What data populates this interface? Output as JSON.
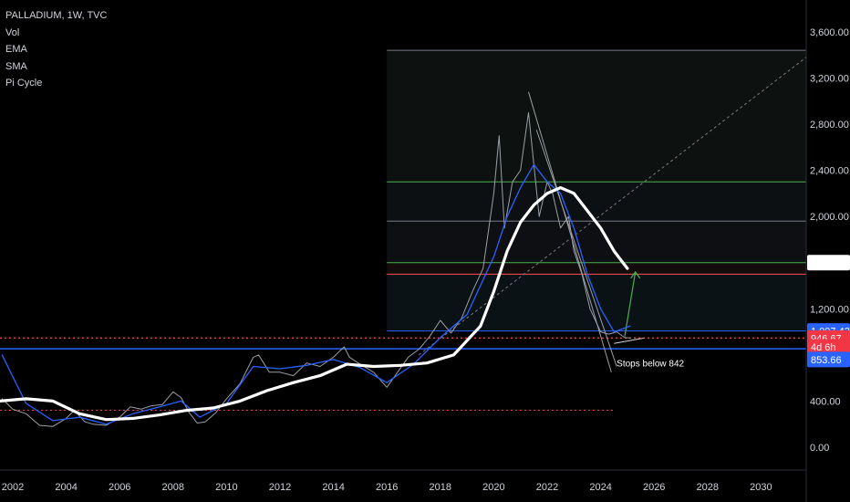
{
  "legend": {
    "symbol": "PALLADIUM, 1W, TVC",
    "indicators": [
      "Vol",
      "EMA",
      "SMA",
      "Pi Cycle"
    ]
  },
  "colors": {
    "background": "#000000",
    "candles": "#9aa0a6",
    "ema": "#2962ff",
    "pi_cycle": "#ffffff",
    "support_line": "#2962ff",
    "current_price_line": "#f23645",
    "fib_upper_line": "#4caf50",
    "fib_red_line": "#ff5252",
    "projection_arrow": "#4caf50",
    "badge_blue": "#2962ff",
    "badge_red": "#f23645",
    "badge_white": "#ffffff"
  },
  "chart_data": {
    "type": "line",
    "title": "PALLADIUM, 1W, TVC",
    "xlabel": "",
    "ylabel": "",
    "xlim": [
      2001.5,
      2031.5
    ],
    "ylim": [
      -150,
      3750
    ],
    "x_ticks": [
      "2002",
      "2004",
      "2006",
      "2008",
      "2010",
      "2012",
      "2014",
      "2016",
      "2018",
      "2020",
      "2022",
      "2024",
      "2026",
      "2028",
      "2030"
    ],
    "y_ticks": [
      "3,600.00",
      "3,200.00",
      "2,800.00",
      "2,400.00",
      "2,000.00",
      "1,600.00",
      "1,200.00",
      "800.00",
      "400.00",
      "0.00"
    ],
    "grid": false,
    "series": [
      {
        "name": "",
        "color": "#9aa0a6",
        "x": [
          2001.6,
          2002.0,
          2002.5,
          2003.0,
          2003.5,
          2004.0,
          2004.3,
          2004.7,
          2005.0,
          2005.5,
          2006.0,
          2006.4,
          2006.8,
          2007.2,
          2007.6,
          2008.0,
          2008.3,
          2008.6,
          2008.9,
          2009.2,
          2009.6,
          2010.0,
          2010.5,
          2011.0,
          2011.2,
          2011.6,
          2012.0,
          2012.5,
          2013.0,
          2013.5,
          2014.0,
          2014.4,
          2014.6,
          2015.0,
          2015.5,
          2016.0,
          2016.4,
          2016.8,
          2017.2,
          2017.6,
          2018.0,
          2018.4,
          2018.8,
          2019.2,
          2019.6,
          2020.0,
          2020.2,
          2020.4,
          2020.7,
          2021.0,
          2021.3,
          2021.7,
          2022.0,
          2022.2,
          2022.5,
          2022.8,
          2023.0,
          2023.3,
          2023.6,
          2024.0,
          2024.3,
          2024.6,
          2024.9,
          2025.1
        ],
        "values": [
          420,
          330,
          290,
          190,
          180,
          250,
          320,
          220,
          200,
          190,
          260,
          350,
          330,
          360,
          370,
          480,
          430,
          300,
          210,
          220,
          300,
          420,
          550,
          780,
          800,
          650,
          650,
          620,
          730,
          700,
          780,
          870,
          780,
          720,
          650,
          520,
          650,
          780,
          850,
          960,
          1100,
          990,
          1120,
          1350,
          1550,
          2200,
          2700,
          1900,
          2300,
          2400,
          2900,
          2000,
          2300,
          2200,
          1900,
          2000,
          1700,
          1500,
          1200,
          1000,
          980,
          1000,
          950,
          947
        ]
      },
      {
        "name": "EMA",
        "color": "#2962ff",
        "x": [
          2001.6,
          2002.5,
          2003.5,
          2004.5,
          2005.5,
          2006.5,
          2007.5,
          2008.3,
          2009.0,
          2010.0,
          2011.0,
          2012.0,
          2013.0,
          2014.0,
          2015.0,
          2016.0,
          2017.0,
          2018.0,
          2019.0,
          2020.0,
          2020.5,
          2021.0,
          2021.5,
          2022.0,
          2022.5,
          2023.0,
          2023.5,
          2024.0,
          2024.5,
          2025.1
        ],
        "values": [
          800,
          380,
          230,
          260,
          200,
          290,
          350,
          400,
          260,
          380,
          700,
          680,
          710,
          760,
          690,
          560,
          720,
          950,
          1150,
          1650,
          2000,
          2250,
          2450,
          2300,
          2200,
          1900,
          1500,
          1200,
          1000,
          1050
        ]
      },
      {
        "name": "Pi Cycle",
        "color": "#ffffff",
        "x": [
          2001.5,
          2002.5,
          2003.5,
          2004.5,
          2005.5,
          2006.5,
          2007.5,
          2008.5,
          2009.5,
          2010.5,
          2011.5,
          2012.5,
          2013.5,
          2014.5,
          2015.5,
          2016.5,
          2017.5,
          2018.5,
          2019.5,
          2020.0,
          2020.5,
          2021.0,
          2021.5,
          2022.0,
          2022.5,
          2023.0,
          2023.5,
          2024.0,
          2024.5,
          2025.0
        ],
        "values": [
          400,
          420,
          400,
          290,
          240,
          250,
          280,
          320,
          340,
          400,
          490,
          560,
          620,
          720,
          700,
          710,
          730,
          800,
          1050,
          1350,
          1700,
          1950,
          2100,
          2200,
          2250,
          2200,
          2050,
          1900,
          1700,
          1550
        ]
      }
    ],
    "horizontal_levels": [
      {
        "value": 3440,
        "color": "#787b86"
      },
      {
        "value": 2300,
        "color": "#4caf50"
      },
      {
        "value": 1960,
        "color": "#787b86"
      },
      {
        "value": 1600.47,
        "color": "#4caf50"
      },
      {
        "value": 1500,
        "color": "#ff5252"
      },
      {
        "value": 1007.42,
        "color": "#2962ff"
      },
      {
        "value": 946.67,
        "color": "#f23645"
      },
      {
        "value": 853.66,
        "color": "#2962ff"
      },
      {
        "value": 320,
        "color": "#f23645"
      }
    ],
    "price_badges": [
      {
        "label": "1,600.47",
        "value": 1600.47,
        "color": "#ffffff",
        "text_color": "#000000"
      },
      {
        "label": "1,007.42",
        "value": 1007.42,
        "color": "#2962ff",
        "text_color": "#ffffff"
      },
      {
        "label": "946.67",
        "value": 946.67,
        "color": "#f23645",
        "text_color": "#ffffff"
      },
      {
        "label": "4d 6h",
        "value": 870,
        "color": "#f23645",
        "text_color": "#ffffff"
      },
      {
        "label": "853.66",
        "value": 760,
        "color": "#2962ff",
        "text_color": "#ffffff"
      }
    ],
    "annotations": [
      {
        "text": "Stops below 842",
        "x": 2024.6,
        "y": 700
      }
    ]
  }
}
